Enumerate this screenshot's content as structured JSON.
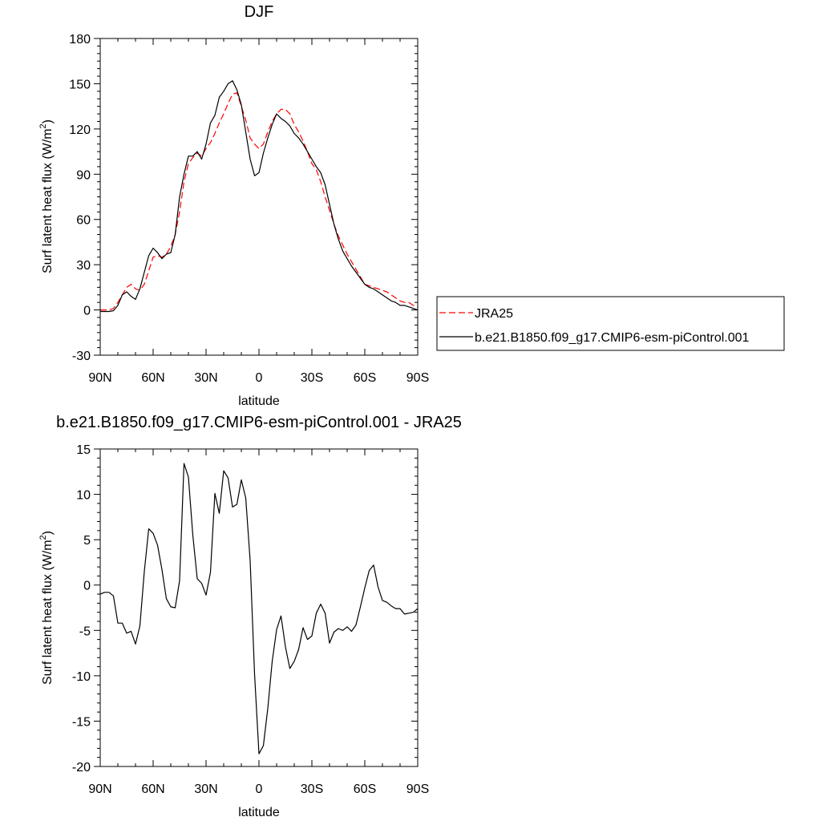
{
  "chart_data": [
    {
      "type": "line",
      "title": "DJF",
      "xlabel": "latitude",
      "ylabel": "Surf latent heat flux (W/m",
      "ylabel_sup": "2",
      "ylabel_close": ")",
      "xlim": [
        90,
        -90
      ],
      "ylim": [
        -30,
        180
      ],
      "x_ticks": [
        90,
        60,
        30,
        0,
        -30,
        -60,
        -90
      ],
      "x_tick_labels": [
        "90N",
        "60N",
        "30N",
        "0",
        "30S",
        "60S",
        "90S"
      ],
      "y_ticks": [
        -30,
        0,
        30,
        60,
        90,
        120,
        150,
        180
      ],
      "y_tick_labels": [
        "-30",
        "0",
        "30",
        "60",
        "90",
        "120",
        "150",
        "180"
      ],
      "legend_position": "right",
      "series": [
        {
          "name": "JRA25",
          "color": "#ff0000",
          "dash": "dashed",
          "x": [
            90,
            87.5,
            85,
            82.5,
            80,
            77.5,
            75,
            72.5,
            70,
            67.5,
            65,
            62.5,
            60,
            57.5,
            55,
            52.5,
            50,
            47.5,
            45,
            42.5,
            40,
            37.5,
            35,
            32.5,
            30,
            27.5,
            25,
            22.5,
            20,
            17.5,
            15,
            12.5,
            10,
            7.5,
            5,
            2.5,
            0,
            -2.5,
            -5,
            -7.5,
            -10,
            -12.5,
            -15,
            -17.5,
            -20,
            -22.5,
            -25,
            -27.5,
            -30,
            -32.5,
            -35,
            -37.5,
            -40,
            -42.5,
            -45,
            -47.5,
            -50,
            -52.5,
            -55,
            -57.5,
            -60,
            -62.5,
            -65,
            -67.5,
            -70,
            -72.5,
            -75,
            -77.5,
            -80,
            -82.5,
            -85,
            -87.5,
            -90
          ],
          "values": [
            0,
            0,
            0,
            1,
            5,
            10,
            15,
            17,
            14,
            13,
            17,
            26,
            35,
            36,
            35,
            37,
            42,
            50,
            65,
            85,
            97,
            101,
            104,
            102,
            107,
            111,
            117,
            124,
            130,
            137,
            143,
            144,
            135,
            126,
            114,
            110,
            107,
            110,
            118,
            125,
            130,
            133,
            133,
            130,
            123,
            118,
            112,
            105,
            97,
            93,
            85,
            75,
            66,
            57,
            49,
            43,
            37,
            32,
            27,
            22,
            17,
            16,
            15,
            14,
            13,
            12,
            10,
            8,
            6,
            5,
            5,
            3,
            2
          ]
        },
        {
          "name": "b.e21.B1850.f09_g17.CMIP6-esm-piControl.001",
          "color": "#000000",
          "dash": "solid",
          "x": [
            90,
            87.5,
            85,
            82.5,
            80,
            77.5,
            75,
            72.5,
            70,
            67.5,
            65,
            62.5,
            60,
            57.5,
            55,
            52.5,
            50,
            47.5,
            45,
            42.5,
            40,
            37.5,
            35,
            32.5,
            30,
            27.5,
            25,
            22.5,
            20,
            17.5,
            15,
            12.5,
            10,
            7.5,
            5,
            2.5,
            0,
            -2.5,
            -5,
            -7.5,
            -10,
            -12.5,
            -15,
            -17.5,
            -20,
            -22.5,
            -25,
            -27.5,
            -30,
            -32.5,
            -35,
            -37.5,
            -40,
            -42.5,
            -45,
            -47.5,
            -50,
            -52.5,
            -55,
            -57.5,
            -60,
            -62.5,
            -65,
            -67.5,
            -70,
            -72.5,
            -75,
            -77.5,
            -80,
            -82.5,
            -85,
            -87.5,
            -90
          ],
          "values": [
            -1,
            -1,
            -1,
            -0.5,
            3,
            10,
            12,
            9,
            7,
            14,
            25,
            36,
            41,
            38,
            34,
            37,
            38,
            50,
            75,
            90,
            102,
            102,
            105,
            100,
            110,
            124,
            129,
            141,
            145,
            150,
            152,
            146,
            136,
            118,
            100,
            89,
            91,
            104,
            114,
            123,
            130,
            127,
            125,
            122,
            117,
            114,
            110,
            105,
            100,
            95,
            91,
            83,
            70,
            57,
            47,
            39,
            34,
            29,
            25,
            21,
            17,
            15,
            14,
            12,
            10,
            8,
            6,
            5,
            3,
            3,
            2,
            1,
            0
          ]
        }
      ]
    },
    {
      "type": "line",
      "title": "b.e21.B1850.f09_g17.CMIP6-esm-piControl.001 - JRA25",
      "xlabel": "latitude",
      "ylabel": "Surf latent heat flux (W/m",
      "ylabel_sup": "2",
      "ylabel_close": ")",
      "xlim": [
        90,
        -90
      ],
      "ylim": [
        -20,
        15
      ],
      "x_ticks": [
        90,
        60,
        30,
        0,
        -30,
        -60,
        -90
      ],
      "x_tick_labels": [
        "90N",
        "60N",
        "30N",
        "0",
        "30S",
        "60S",
        "90S"
      ],
      "y_ticks": [
        -20,
        -15,
        -10,
        -5,
        0,
        5,
        10,
        15
      ],
      "y_tick_labels": [
        "-20",
        "-15",
        "-10",
        "-5",
        "0",
        "5",
        "10",
        "15"
      ],
      "series": [
        {
          "color": "#000000",
          "dash": "solid",
          "x": [
            90,
            87.5,
            85,
            82.5,
            80,
            77.5,
            75,
            72.5,
            70,
            67.5,
            65,
            62.5,
            60,
            57.5,
            55,
            52.5,
            50,
            47.5,
            45,
            42.5,
            40,
            37.5,
            35,
            32.5,
            30,
            27.5,
            25,
            22.5,
            20,
            17.5,
            15,
            12.5,
            10,
            7.5,
            5,
            2.5,
            0,
            -2.5,
            -5,
            -7.5,
            -10,
            -12.5,
            -15,
            -17.5,
            -20,
            -22.5,
            -25,
            -27.5,
            -30,
            -32.5,
            -35,
            -37.5,
            -40,
            -42.5,
            -45,
            -47.5,
            -50,
            -52.5,
            -55,
            -57.5,
            -60,
            -62.5,
            -65,
            -67.5,
            -70,
            -72.5,
            -75,
            -77.5,
            -80,
            -82.5,
            -85,
            -87.5,
            -90
          ],
          "values": [
            -1,
            -0.8,
            -0.8,
            -1.2,
            -4.2,
            -4.2,
            -5.3,
            -5.1,
            -6.5,
            -4.5,
            1.5,
            6.2,
            5.7,
            4.4,
            1.7,
            -1.5,
            -2.4,
            -2.5,
            0.5,
            13.4,
            11.9,
            5.5,
            0.7,
            0.2,
            -1.1,
            1.4,
            10.1,
            7.9,
            12.6,
            11.8,
            8.6,
            8.9,
            11.6,
            9.6,
            2.7,
            -9.8,
            -18.6,
            -17.7,
            -13.6,
            -8.4,
            -4.9,
            -3.4,
            -6.8,
            -9.2,
            -8.4,
            -7.1,
            -4.7,
            -6.0,
            -5.6,
            -3.1,
            -2.1,
            -3.1,
            -6.4,
            -5.2,
            -4.8,
            -5.0,
            -4.6,
            -5.1,
            -4.4,
            -2.4,
            -0.3,
            1.6,
            2.2,
            -0.2,
            -1.7,
            -1.9,
            -2.3,
            -2.6,
            -2.6,
            -3.2,
            -3.1,
            -3.0,
            -2.6
          ]
        }
      ]
    }
  ]
}
